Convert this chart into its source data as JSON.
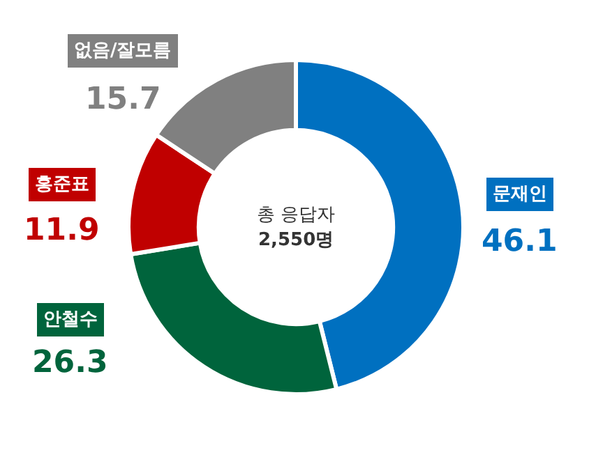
{
  "chart_data": {
    "type": "donut",
    "categories": [
      "문재인",
      "안철수",
      "홍준표",
      "없음/잘모름"
    ],
    "values": [
      46.1,
      26.3,
      11.9,
      15.7
    ],
    "colors": [
      "#0070c0",
      "#00643c",
      "#c00000",
      "#808080"
    ],
    "data_labels": true,
    "legend": false,
    "annotations": [
      "총 응답자",
      "2,550명"
    ]
  }
}
